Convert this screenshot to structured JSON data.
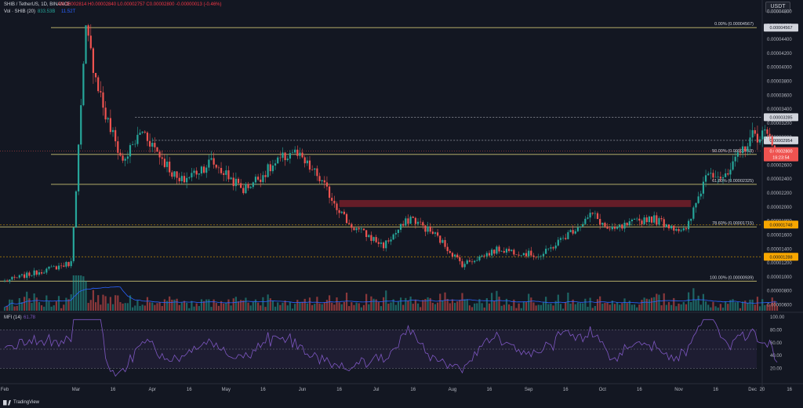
{
  "header": {
    "symbol": "SHIB / TetherUS, 1D, BINANCE",
    "ohlc": "O0.00002814  H0.00002840  L0.00002757  C0.00002800  -0.00000013 (-0.46%)",
    "vol_label": "Vol · SHIB (20)",
    "vol_value": "833.53B",
    "vol_ma": "11.52T",
    "currency": "USDT",
    "mfi_label": "MFI (14)",
    "mfi_value": "61.78"
  },
  "logo_text": "TradingView",
  "colors": {
    "background": "#131722",
    "up": "#26a69a",
    "down": "#ef5350",
    "fib": "#c9c073",
    "mfi": "#7e57c2",
    "vol_ma": "#2962ff",
    "zone": "#7a1f2a"
  },
  "chart_data": {
    "type": "candlestick",
    "y_scale": {
      "min": 5.5e-06,
      "max": 4.85e-05
    },
    "price_ticks": [
      "0.00004800",
      "0.00004600",
      "0.00004400",
      "0.00004200",
      "0.00004000",
      "0.00003800",
      "0.00003600",
      "0.00003400",
      "0.00003200",
      "0.00003000",
      "0.00002800",
      "0.00002600",
      "0.00002400",
      "0.00002200",
      "0.00002000",
      "0.00001800",
      "0.00001600",
      "0.00001400",
      "0.00001200",
      "0.00001000",
      "0.00000800",
      "0.00000600"
    ],
    "x_labels": [
      "Feb",
      "Mar",
      "16",
      "Apr",
      "16",
      "May",
      "16",
      "Jun",
      "16",
      "Jul",
      "16",
      "Aug",
      "16",
      "Sep",
      "16",
      "Oct",
      "16",
      "Nov",
      "16",
      "Dec",
      "16",
      "20"
    ],
    "fib_levels": [
      {
        "label": "0.00% (0.00004567)",
        "price": 4.567e-05
      },
      {
        "label": "50.00% (0.00002753)",
        "price": 2.753e-05
      },
      {
        "label": "61.80% (0.00002325)",
        "price": 2.325e-05
      },
      {
        "label": "78.60% (0.00001715)",
        "price": 1.715e-05
      },
      {
        "label": "100.00% (0.00000939)",
        "price": 9.39e-06
      }
    ],
    "dashed_levels": [
      {
        "price": 3.285e-05,
        "badge": "0.00003285"
      },
      {
        "price": 2.954e-05,
        "badge": "0.00002954"
      },
      {
        "price": 1.748e-05,
        "badge": "0.00001748"
      },
      {
        "price": 1.288e-05,
        "badge": "0.00001288"
      }
    ],
    "current_price": {
      "value": "0.00002800",
      "countdown": "18:23:54"
    },
    "resistance_zone": {
      "price_low": 2e-05,
      "price_high": 2.1e-05
    },
    "mfi": {
      "ticks": [
        "100.00",
        "80.00",
        "60.00",
        "40.00",
        "20.00"
      ],
      "upper_band": 80,
      "lower_band": 20
    },
    "anchors": [
      {
        "date": "2024-02-01",
        "price": 9.4e-06
      },
      {
        "date": "2024-02-28",
        "price": 1.2e-05
      },
      {
        "date": "2024-03-05",
        "price": 4.5e-05
      },
      {
        "date": "2024-03-13",
        "price": 3.3e-05
      },
      {
        "date": "2024-03-20",
        "price": 2.65e-05
      },
      {
        "date": "2024-03-28",
        "price": 3.1e-05
      },
      {
        "date": "2024-04-12",
        "price": 2.35e-05
      },
      {
        "date": "2024-04-25",
        "price": 2.65e-05
      },
      {
        "date": "2024-05-08",
        "price": 2.25e-05
      },
      {
        "date": "2024-05-28",
        "price": 2.8e-05
      },
      {
        "date": "2024-06-07",
        "price": 2.45e-05
      },
      {
        "date": "2024-06-20",
        "price": 1.75e-05
      },
      {
        "date": "2024-07-04",
        "price": 1.45e-05
      },
      {
        "date": "2024-07-15",
        "price": 1.85e-05
      },
      {
        "date": "2024-07-25",
        "price": 1.6e-05
      },
      {
        "date": "2024-08-05",
        "price": 1.18e-05
      },
      {
        "date": "2024-08-20",
        "price": 1.4e-05
      },
      {
        "date": "2024-09-06",
        "price": 1.3e-05
      },
      {
        "date": "2024-09-27",
        "price": 1.9e-05
      },
      {
        "date": "2024-10-04",
        "price": 1.65e-05
      },
      {
        "date": "2024-10-20",
        "price": 1.85e-05
      },
      {
        "date": "2024-11-04",
        "price": 1.65e-05
      },
      {
        "date": "2024-11-13",
        "price": 2.55e-05
      },
      {
        "date": "2024-11-20",
        "price": 2.4e-05
      },
      {
        "date": "2024-11-30",
        "price": 3e-05
      },
      {
        "date": "2024-12-06",
        "price": 3.05e-05
      },
      {
        "date": "2024-12-11",
        "price": 2.8e-05
      }
    ]
  }
}
